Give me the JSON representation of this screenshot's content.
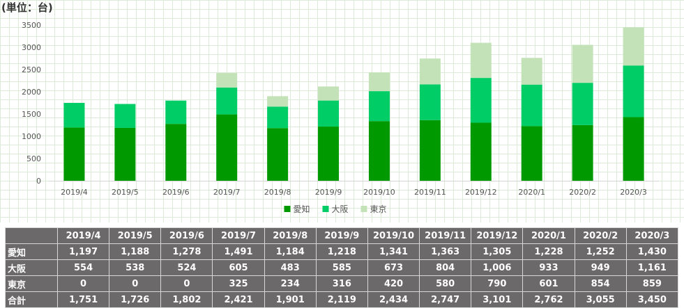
{
  "unit_label": "(単位：台)",
  "chart_data": {
    "type": "bar",
    "stacked": true,
    "categories": [
      "2019/4",
      "2019/5",
      "2019/6",
      "2019/7",
      "2019/8",
      "2019/9",
      "2019/10",
      "2019/11",
      "2019/12",
      "2020/1",
      "2020/2",
      "2020/3"
    ],
    "series": [
      {
        "name": "愛知",
        "color": "#009a00",
        "values": [
          1197,
          1188,
          1278,
          1491,
          1184,
          1218,
          1341,
          1363,
          1305,
          1228,
          1252,
          1430
        ]
      },
      {
        "name": "大阪",
        "color": "#00cd66",
        "values": [
          554,
          538,
          524,
          605,
          483,
          585,
          673,
          804,
          1006,
          933,
          949,
          1161
        ]
      },
      {
        "name": "東京",
        "color": "#c4e2b8",
        "values": [
          0,
          0,
          0,
          325,
          234,
          316,
          420,
          580,
          790,
          601,
          854,
          859
        ]
      }
    ],
    "y_ticks": [
      "0",
      "500",
      "1000",
      "1500",
      "2000",
      "2500",
      "3000",
      "3500"
    ],
    "ylim": [
      0,
      3500
    ],
    "grid": true,
    "legend_position": "bottom"
  },
  "table": {
    "headers": [
      "2019/4",
      "2019/5",
      "2019/6",
      "2019/7",
      "2019/8",
      "2019/9",
      "2019/10",
      "2019/11",
      "2019/12",
      "2020/1",
      "2020/2",
      "2020/3"
    ],
    "rows": [
      {
        "label": "愛知",
        "values": [
          "1,197",
          "1,188",
          "1,278",
          "1,491",
          "1,184",
          "1,218",
          "1,341",
          "1,363",
          "1,305",
          "1,228",
          "1,252",
          "1,430"
        ]
      },
      {
        "label": "大阪",
        "values": [
          "554",
          "538",
          "524",
          "605",
          "483",
          "585",
          "673",
          "804",
          "1,006",
          "933",
          "949",
          "1,161"
        ]
      },
      {
        "label": "東京",
        "values": [
          "0",
          "0",
          "0",
          "325",
          "234",
          "316",
          "420",
          "580",
          "790",
          "601",
          "854",
          "859"
        ]
      },
      {
        "label": "合計",
        "values": [
          "1,751",
          "1,726",
          "1,802",
          "2,421",
          "1,901",
          "2,119",
          "2,434",
          "2,747",
          "3,101",
          "2,762",
          "3,055",
          "3,450"
        ]
      }
    ]
  }
}
